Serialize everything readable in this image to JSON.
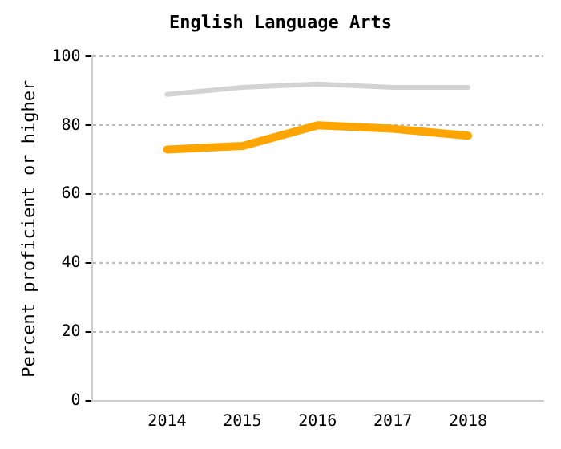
{
  "chart_data": {
    "type": "line",
    "title": "English Language Arts",
    "ylabel": "Percent proficient or higher",
    "categories": [
      null,
      "2014",
      "2015",
      "2016",
      "2017",
      "2018",
      null
    ],
    "series": [
      {
        "color": "#d3d3d3",
        "values": [
          null,
          89,
          91,
          92,
          91,
          91,
          null
        ]
      },
      {
        "color": "#ffa500",
        "values": [
          null,
          73,
          74,
          80,
          79,
          77,
          null
        ]
      }
    ],
    "ylim": [
      0,
      100
    ],
    "yticks": [
      0,
      20,
      40,
      60,
      80,
      100
    ],
    "grid": "y",
    "legend": false,
    "marker": "none",
    "line_style": "solid"
  }
}
